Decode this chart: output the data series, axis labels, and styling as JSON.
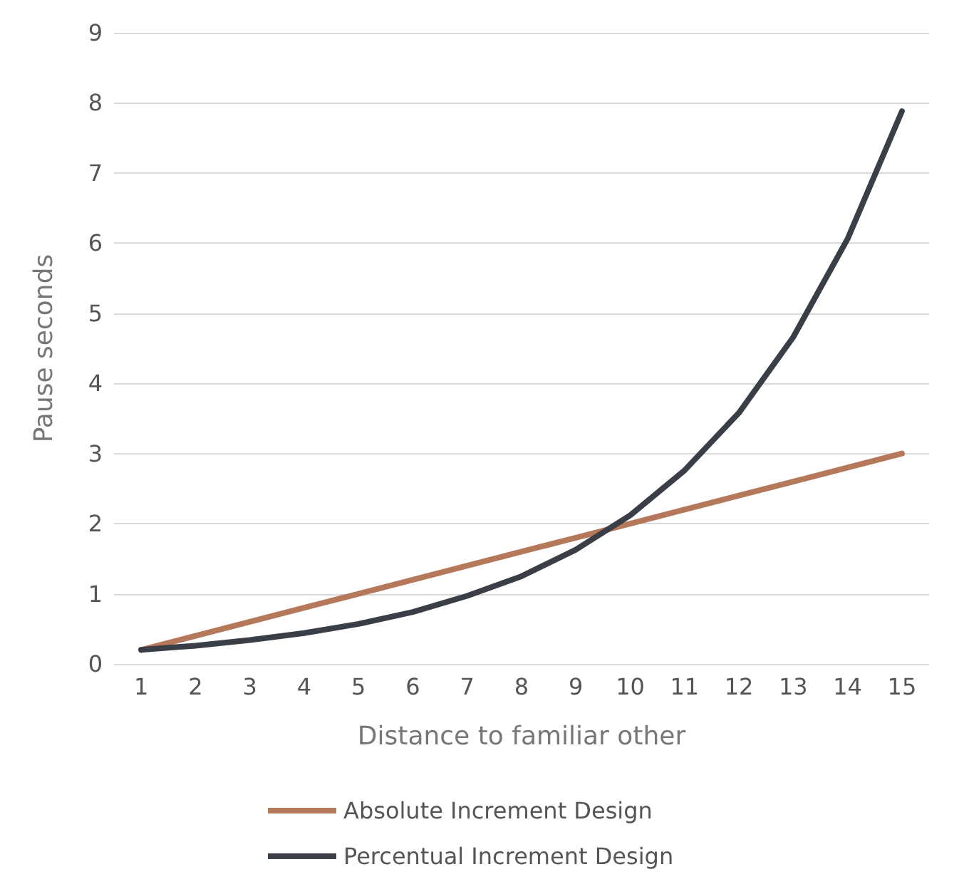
{
  "chart_data": {
    "type": "line",
    "xlabel": "Distance to familiar other",
    "ylabel": "Pause seconds",
    "categories": [
      "1",
      "2",
      "3",
      "4",
      "5",
      "6",
      "7",
      "8",
      "9",
      "10",
      "11",
      "12",
      "13",
      "14",
      "15"
    ],
    "series": [
      {
        "name": "Absolute Increment Design",
        "color": "#b5785a",
        "values": [
          0.2,
          0.4,
          0.6,
          0.8,
          1.0,
          1.2,
          1.4,
          1.6,
          1.8,
          2.0,
          2.2,
          2.4,
          2.6,
          2.8,
          3.0
        ]
      },
      {
        "name": "Percentual Increment Design",
        "color": "#3a3f47",
        "values": [
          0.2,
          0.26,
          0.34,
          0.44,
          0.57,
          0.74,
          0.97,
          1.25,
          1.63,
          2.12,
          2.76,
          3.58,
          4.66,
          6.06,
          7.88
        ]
      }
    ],
    "ylim": [
      0,
      9
    ],
    "yticks": [
      0,
      1,
      2,
      3,
      4,
      5,
      6,
      7,
      8,
      9
    ],
    "grid": "y",
    "legend": "bottom",
    "marker": "none",
    "line_style": "solid"
  }
}
